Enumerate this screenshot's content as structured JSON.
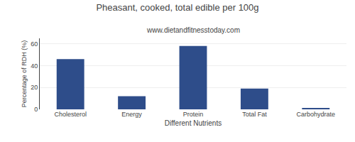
{
  "chart_data": {
    "type": "bar",
    "title": "Pheasant, cooked, total edible per 100g",
    "subtitle": "www.dietandfitnesstoday.com",
    "xlabel": "Different Nutrients",
    "ylabel": "Percentage of RDH (%)",
    "categories": [
      "Cholesterol",
      "Energy",
      "Protein",
      "Total Fat",
      "Carbohydrate"
    ],
    "values": [
      46,
      12,
      58,
      19,
      1
    ],
    "color": "#2e4d8a",
    "ylim": [
      0,
      65
    ],
    "yticks": [
      0,
      20,
      40,
      60
    ],
    "grid": true
  }
}
